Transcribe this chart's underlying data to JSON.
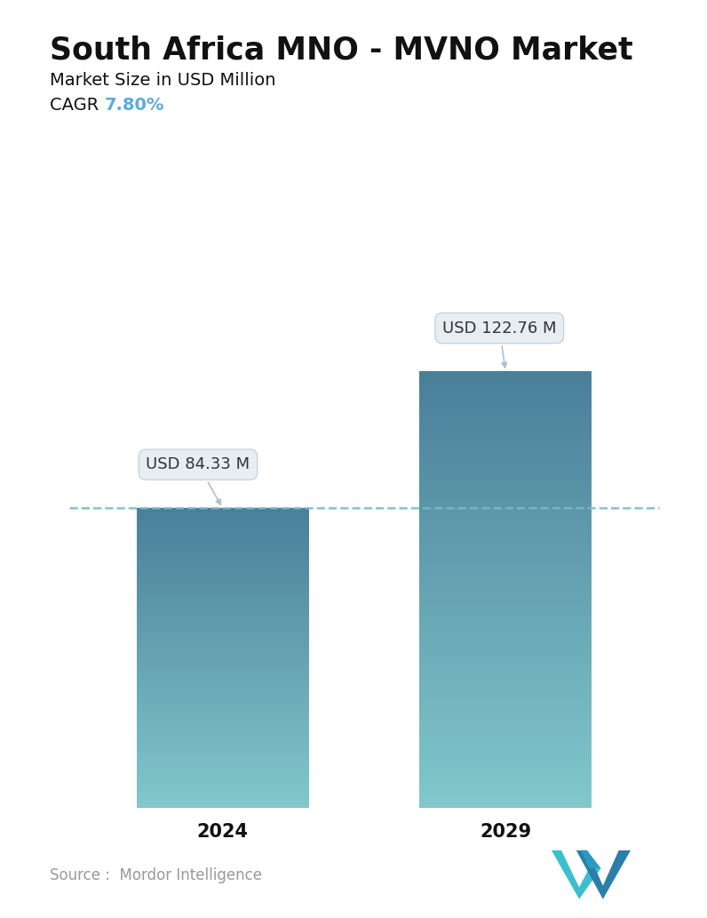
{
  "title": "South Africa MNO - MVNO Market",
  "subtitle": "Market Size in USD Million",
  "cagr_label": "CAGR",
  "cagr_value": "7.80%",
  "cagr_color": "#5aace0",
  "categories": [
    "2024",
    "2029"
  ],
  "values": [
    84.33,
    122.76
  ],
  "labels": [
    "USD 84.33 M",
    "USD 122.76 M"
  ],
  "bar_color_top": "#4a7f9a",
  "bar_color_bottom": "#82c8cc",
  "dashed_line_color": "#7ab8cc",
  "source_text": "Source :  Mordor Intelligence",
  "background_color": "#ffffff",
  "ylim": [
    0,
    155
  ],
  "title_fontsize": 25,
  "subtitle_fontsize": 14,
  "cagr_fontsize": 14,
  "tick_fontsize": 15,
  "label_fontsize": 13,
  "source_fontsize": 12
}
